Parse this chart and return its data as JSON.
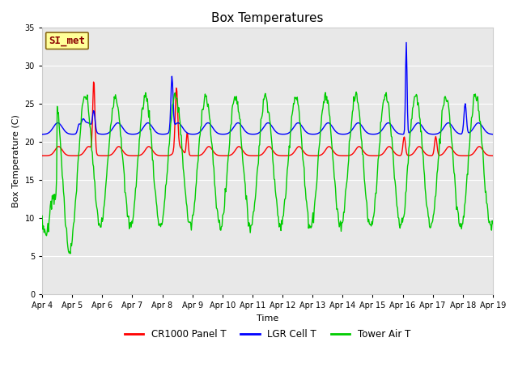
{
  "title": "Box Temperatures",
  "xlabel": "Time",
  "ylabel": "Box Temperature (C)",
  "ylim": [
    0,
    35
  ],
  "bg_color": "#e8e8e8",
  "fig_bg": "#ffffff",
  "annotation_text": "SI_met",
  "annotation_color": "#8b0000",
  "annotation_bg": "#ffff99",
  "annotation_border": "#8b6914",
  "annotation_fontsize": 9,
  "xtick_labels": [
    "Apr 4",
    "Apr 5",
    "Apr 6",
    "Apr 7",
    "Apr 8",
    "Apr 9",
    "Apr 10",
    "Apr 11",
    "Apr 12",
    "Apr 13",
    "Apr 14",
    "Apr 15",
    "Apr 16",
    "Apr 17",
    "Apr 18",
    "Apr 19"
  ],
  "legend_labels": [
    "CR1000 Panel T",
    "LGR Cell T",
    "Tower Air T"
  ],
  "legend_colors": [
    "red",
    "blue",
    "#00cc00"
  ],
  "line_width": 1.0,
  "title_fontsize": 11,
  "axis_fontsize": 8,
  "tick_fontsize": 7
}
